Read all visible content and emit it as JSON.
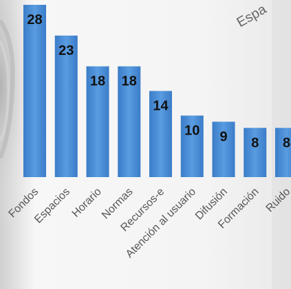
{
  "chart_data": {
    "type": "bar",
    "categories": [
      "Fondos",
      "Espacios",
      "Horario",
      "Normas",
      "Recursos-e",
      "Atención al usuario",
      "Difusión",
      "Formación",
      "Ruido"
    ],
    "values": [
      28,
      23,
      18,
      18,
      14,
      10,
      9,
      8,
      8
    ],
    "ylim": [
      0,
      28
    ],
    "grid": false,
    "legend": "none",
    "bar_color": "#4a90d9",
    "bar_color_dark": "#3a78c2",
    "title": "",
    "xlabel": "",
    "ylabel": ""
  },
  "peek_text": {
    "top_right": "Espa"
  }
}
